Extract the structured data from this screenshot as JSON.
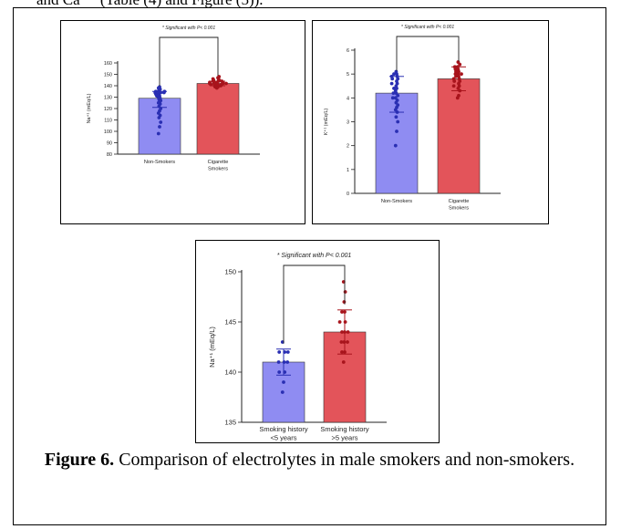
{
  "top_text": "and Ca⁺⁺ (Table (4) and Figure (5)).",
  "caption": {
    "label": "Figure 6.",
    "text": "Comparison of electrolytes in male smokers and non-smokers."
  },
  "colors": {
    "blue_bar": "#8f8cf2",
    "blue_point": "#2a2fb3",
    "red_bar": "#e3545a",
    "red_point": "#a8141c"
  },
  "chart_data": [
    {
      "type": "bar",
      "ylabel": "Na⁺¹ (mEq/L)",
      "significance": "* Significant with P< 0.001",
      "ylim": [
        80,
        160
      ],
      "yticks": [
        80,
        90,
        100,
        110,
        120,
        130,
        140,
        150,
        160
      ],
      "categories": [
        "Non-Smokers",
        "Cigarette Smokers"
      ],
      "category_lines": [
        [
          "Non-Smokers"
        ],
        [
          "Cigarette",
          "Smokers"
        ]
      ],
      "values": [
        129,
        142
      ],
      "error": [
        [
          121,
          135
        ],
        [
          140,
          144
        ]
      ],
      "points": [
        [
          98,
          104,
          108,
          112,
          114,
          116,
          118,
          120,
          122,
          124,
          125,
          126,
          127,
          128,
          129,
          130,
          131,
          131,
          132,
          132,
          133,
          133,
          134,
          134,
          134,
          135,
          135,
          135,
          136,
          137,
          138,
          139
        ],
        [
          138,
          139,
          139,
          140,
          140,
          140,
          141,
          141,
          141,
          141,
          142,
          142,
          142,
          142,
          142,
          143,
          143,
          143,
          143,
          144,
          144,
          144,
          145,
          145,
          146,
          146,
          147,
          148
        ]
      ]
    },
    {
      "type": "bar",
      "ylabel": "K⁺¹ (mEq/L)",
      "significance": "* Significant with P< 0.001",
      "ylim": [
        0,
        6
      ],
      "yticks": [
        0,
        1,
        2,
        3,
        4,
        5,
        6
      ],
      "categories": [
        "Non-Smokers",
        "Cigarette Smokers"
      ],
      "category_lines": [
        [
          "Non-Smokers"
        ],
        [
          "Cigarette",
          "Smokers"
        ]
      ],
      "values": [
        4.2,
        4.8
      ],
      "error": [
        [
          3.4,
          4.9
        ],
        [
          4.3,
          5.3
        ]
      ],
      "points": [
        [
          2.0,
          2.6,
          3.0,
          3.2,
          3.4,
          3.5,
          3.6,
          3.7,
          3.8,
          3.9,
          4.0,
          4.0,
          4.1,
          4.2,
          4.2,
          4.3,
          4.4,
          4.4,
          4.5,
          4.6,
          4.6,
          4.7,
          4.8,
          4.8,
          4.9,
          4.9,
          5.0,
          5.0,
          5.1
        ],
        [
          4.0,
          4.1,
          4.3,
          4.4,
          4.5,
          4.5,
          4.6,
          4.7,
          4.7,
          4.8,
          4.8,
          4.9,
          4.9,
          5.0,
          5.0,
          5.0,
          5.1,
          5.1,
          5.2,
          5.2,
          5.3,
          5.3,
          5.4,
          5.5
        ]
      ]
    },
    {
      "type": "bar",
      "ylabel": "Na⁺¹ (mEq/L)",
      "significance": "* Significant with P< 0.001",
      "ylim": [
        135,
        150
      ],
      "yticks": [
        135,
        140,
        145,
        150
      ],
      "categories": [
        "Smoking history <5 years",
        "Smoking history >5 years"
      ],
      "category_lines": [
        [
          "Smoking history",
          "<5 years"
        ],
        [
          "Smoking history",
          ">5 years"
        ]
      ],
      "values": [
        141,
        144
      ],
      "error": [
        [
          139.7,
          142.3
        ],
        [
          141.8,
          146.2
        ]
      ],
      "points": [
        [
          138,
          139,
          140,
          140,
          141,
          141,
          141,
          142,
          142,
          142,
          143
        ],
        [
          141,
          142,
          142,
          143,
          143,
          143,
          144,
          144,
          144,
          145,
          145,
          146,
          146,
          147,
          148,
          149
        ]
      ]
    }
  ]
}
